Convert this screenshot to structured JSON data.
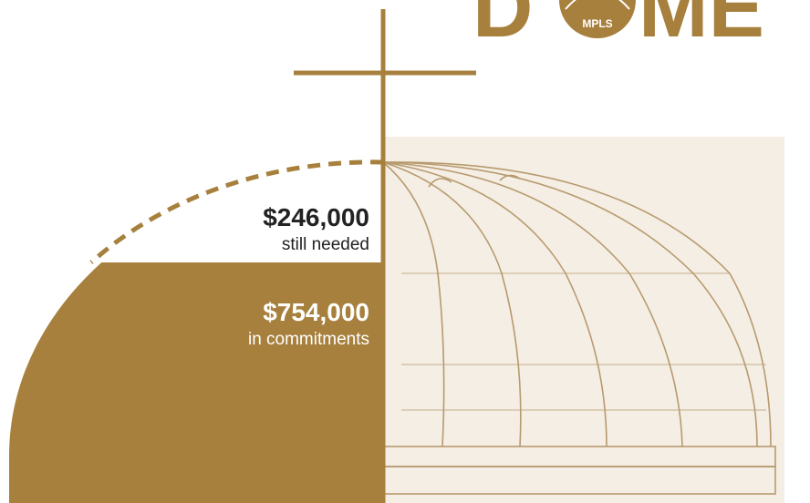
{
  "logo": {
    "left": "D",
    "badge": "MPLS",
    "right": "ME"
  },
  "remaining": {
    "amount": "$246,000",
    "caption": "still needed"
  },
  "committed": {
    "amount": "$754,000",
    "caption": "in commitments"
  }
}
